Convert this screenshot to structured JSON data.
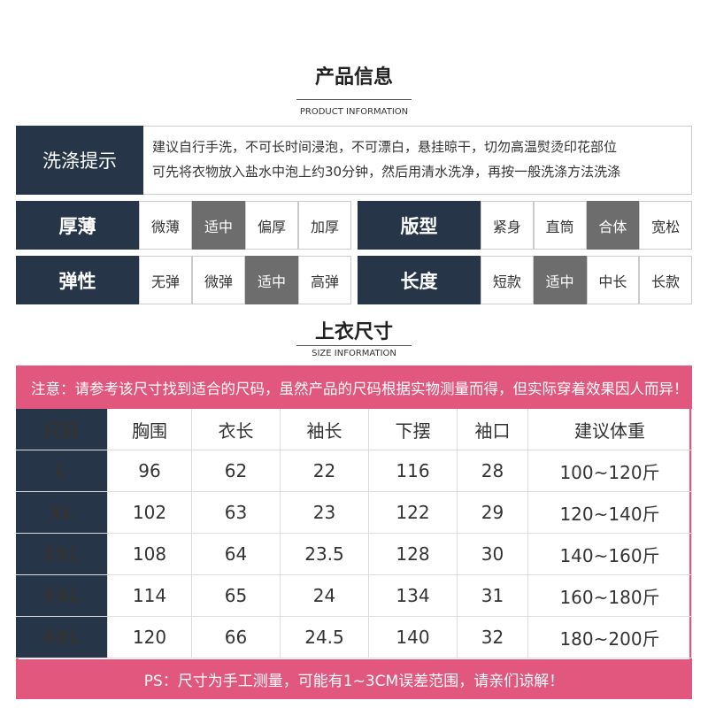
{
  "product_info": {
    "title": "产品信息",
    "subtitle": "PRODUCT INFORMATION"
  },
  "washing": {
    "label": "洗涤提示",
    "lines": [
      "建议自行手洗，不可长时间浸泡，不可漂白，悬挂晾干，切勿高温熨烫印花部位",
      "可先将衣物放入盐水中泡上约30分钟，然后用清水洗净，再按一般洗涤方法洗涤"
    ]
  },
  "attributes": [
    {
      "label": "厚薄",
      "options": [
        "微薄",
        "适中",
        "偏厚",
        "加厚"
      ],
      "selected": 1
    },
    {
      "label": "版型",
      "options": [
        "紧身",
        "直筒",
        "合体",
        "宽松"
      ],
      "selected": 2
    },
    {
      "label": "弹性",
      "options": [
        "无弹",
        "微弹",
        "适中",
        "高弹"
      ],
      "selected": 2
    },
    {
      "label": "长度",
      "options": [
        "短款",
        "适中",
        "中长",
        "长款"
      ],
      "selected": 1
    }
  ],
  "size": {
    "title": "上衣尺寸",
    "subtitle": "SIZE INFORMATION",
    "notice": "注意：请参考该尺寸找到适合的尺码，虽然产品的尺码根据实物测量而得，但实际穿着效果因人而异！",
    "table": {
      "header": [
        "尺码",
        "胸围",
        "衣长",
        "袖长",
        "下摆",
        "袖口",
        "建议体重"
      ],
      "rows": [
        [
          "L",
          "96",
          "62",
          "22",
          "116",
          "28",
          "100~120斤"
        ],
        [
          "XL",
          "102",
          "63",
          "23",
          "122",
          "29",
          "120~140斤"
        ],
        [
          "2XL",
          "108",
          "64",
          "23.5",
          "128",
          "30",
          "140~160斤"
        ],
        [
          "3XL",
          "114",
          "65",
          "24",
          "134",
          "31",
          "160~180斤"
        ],
        [
          "4XL",
          "120",
          "66",
          "24.5",
          "140",
          "32",
          "180~200斤"
        ]
      ]
    },
    "footer": "PS：尺寸为手工测量，可能有1~3CM误差范围，请亲们谅解！"
  }
}
